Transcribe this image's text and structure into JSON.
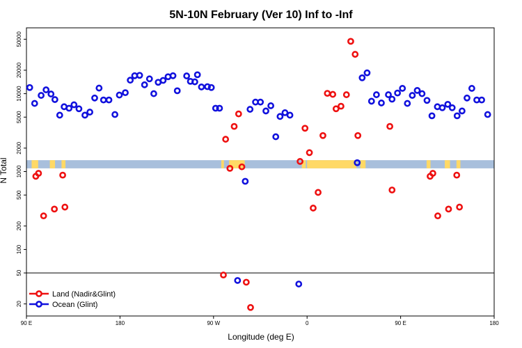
{
  "chart_data": {
    "type": "scatter",
    "title": "5N-10N February (Ver 10)   Inf to -Inf",
    "xlabel": "Longitude (deg E)",
    "ylabel": "N Total",
    "xlim": [
      90,
      450
    ],
    "yscale": "log",
    "ylim": [
      14,
      70000
    ],
    "x_ticks": [
      {
        "value": 90,
        "label": "90 E"
      },
      {
        "value": 162,
        "label": "180"
      },
      {
        "value": 234,
        "label": "90 W"
      },
      {
        "value": 306,
        "label": "0"
      },
      {
        "value": 378,
        "label": "90 E"
      },
      {
        "value": 450,
        "label": "180"
      }
    ],
    "y_ticks": [
      20,
      50,
      100,
      200,
      500,
      1000,
      2000,
      5000,
      10000,
      20000,
      50000
    ],
    "y_tick_labels": [
      "20",
      "50",
      "100",
      "200",
      "500",
      "1000",
      "2000",
      "5000",
      "10000",
      "20000",
      "50000"
    ],
    "reference_line": 50,
    "map_strip": {
      "y_low": 1100,
      "y_high": 1400,
      "ocean_color": "#a8bfdc",
      "land_color": "#ffd966"
    },
    "colors": {
      "land": "#ee1111",
      "ocean": "#1111dd"
    },
    "legend": {
      "position": "bottom-left",
      "entries": [
        {
          "label": "Land (Nadir&Glint)",
          "series": "land"
        },
        {
          "label": "Ocean (Glint)",
          "series": "ocean"
        }
      ]
    },
    "series": [
      {
        "name": "Land (Nadir&Glint)",
        "key": "land",
        "points": [
          [
            97.2,
            870
          ],
          [
            99.3,
            950
          ],
          [
            103.2,
            270
          ],
          [
            111.5,
            330
          ],
          [
            117.9,
            900
          ],
          [
            119.6,
            350
          ],
          [
            241.6,
            47
          ],
          [
            243.3,
            2600
          ],
          [
            246.6,
            1100
          ],
          [
            249.9,
            3800
          ],
          [
            253.3,
            5500
          ],
          [
            255.8,
            1150
          ],
          [
            259.2,
            38
          ],
          [
            262.5,
            18
          ],
          [
            300.6,
            1350
          ],
          [
            304.4,
            3600
          ],
          [
            307.8,
            1750
          ],
          [
            310.7,
            340
          ],
          [
            314.5,
            540
          ],
          [
            318.2,
            2900
          ],
          [
            321.6,
            10100
          ],
          [
            325.8,
            9800
          ],
          [
            328.3,
            6400
          ],
          [
            332.1,
            6900
          ],
          [
            336.3,
            9700
          ],
          [
            339.6,
            47000
          ],
          [
            343.0,
            32000
          ],
          [
            345.1,
            2900
          ],
          [
            369.7,
            3800
          ],
          [
            371.4,
            580
          ],
          [
            400.7,
            870
          ],
          [
            402.8,
            950
          ],
          [
            406.6,
            270
          ],
          [
            414.9,
            330
          ],
          [
            421.2,
            900
          ],
          [
            423.3,
            350
          ]
        ]
      },
      {
        "name": "Ocean (Glint)",
        "key": "ocean",
        "points": [
          [
            92.5,
            12000
          ],
          [
            96.3,
            7500
          ],
          [
            101.3,
            9500
          ],
          [
            105.1,
            11200
          ],
          [
            108.9,
            9900
          ],
          [
            111.9,
            8400
          ],
          [
            115.6,
            5300
          ],
          [
            119.0,
            6800
          ],
          [
            122.8,
            6500
          ],
          [
            126.6,
            7200
          ],
          [
            130.4,
            6400
          ],
          [
            135.0,
            5300
          ],
          [
            138.8,
            5800
          ],
          [
            142.5,
            8800
          ],
          [
            145.9,
            11800
          ],
          [
            149.3,
            8300
          ],
          [
            153.5,
            8300
          ],
          [
            158.1,
            5400
          ],
          [
            161.5,
            9600
          ],
          [
            166.1,
            10300
          ],
          [
            169.9,
            14900
          ],
          [
            173.3,
            17000
          ],
          [
            177.1,
            17200
          ],
          [
            180.9,
            13000
          ],
          [
            184.7,
            15500
          ],
          [
            188.0,
            10000
          ],
          [
            191.4,
            14000
          ],
          [
            195.2,
            14800
          ],
          [
            199.0,
            16500
          ],
          [
            202.8,
            17000
          ],
          [
            206.1,
            10900
          ],
          [
            213.3,
            16900
          ],
          [
            216.2,
            14400
          ],
          [
            219.6,
            14200
          ],
          [
            224.7,
            12200
          ],
          [
            229.3,
            12300
          ],
          [
            221.6,
            17500
          ],
          [
            232.3,
            12000
          ],
          [
            235.6,
            6500
          ],
          [
            238.6,
            6500
          ],
          [
            252.5,
            40
          ],
          [
            258.4,
            750
          ],
          [
            262.1,
            6300
          ],
          [
            266.3,
            7800
          ],
          [
            270.1,
            7800
          ],
          [
            274.3,
            6000
          ],
          [
            278.1,
            7000
          ],
          [
            281.9,
            2800
          ],
          [
            285.2,
            5100
          ],
          [
            289.0,
            5700
          ],
          [
            292.8,
            5300
          ],
          [
            299.6,
            36
          ],
          [
            344.6,
            1300
          ],
          [
            348.4,
            16000
          ],
          [
            352.2,
            18500
          ],
          [
            355.6,
            8000
          ],
          [
            359.4,
            9700
          ],
          [
            363.2,
            7600
          ],
          [
            368.6,
            9700
          ],
          [
            371.4,
            8500
          ],
          [
            375.6,
            10200
          ],
          [
            379.4,
            11700
          ],
          [
            383.2,
            7500
          ],
          [
            387.0,
            9500
          ],
          [
            390.8,
            11000
          ],
          [
            394.5,
            10000
          ],
          [
            398.3,
            8200
          ],
          [
            402.1,
            5200
          ],
          [
            406.3,
            6800
          ],
          [
            410.1,
            6600
          ],
          [
            414.3,
            7300
          ],
          [
            417.7,
            6600
          ],
          [
            421.5,
            5200
          ],
          [
            425.3,
            6000
          ],
          [
            429.1,
            8800
          ],
          [
            432.8,
            11700
          ],
          [
            436.6,
            8300
          ],
          [
            440.4,
            8300
          ],
          [
            445.0,
            5400
          ]
        ]
      }
    ]
  }
}
